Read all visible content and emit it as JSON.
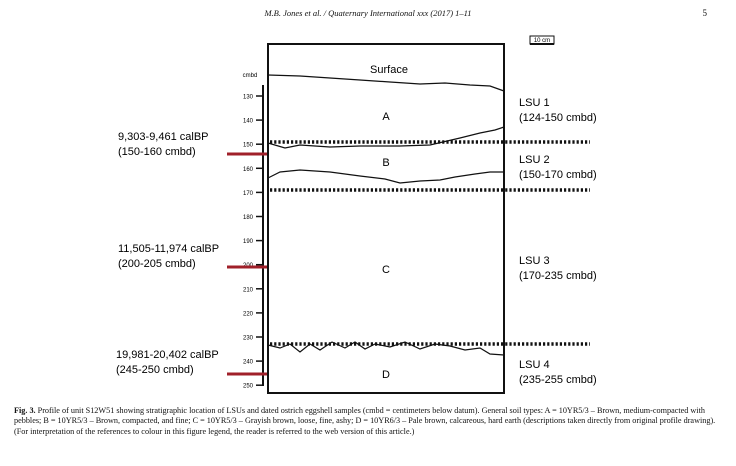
{
  "header": {
    "running_title": "M.B. Jones et al. / Quaternary International xxx (2017) 1–11",
    "page_number": "5"
  },
  "figure": {
    "scale_bar_label": "10 cm",
    "depth_unit_label": "cmbd",
    "depth_ticks": [
      "130",
      "140",
      "150",
      "160",
      "170",
      "180",
      "190",
      "200",
      "210",
      "220",
      "230",
      "240",
      "250"
    ],
    "surface_label": "Surface",
    "soil_layers": [
      "A",
      "B",
      "C",
      "D"
    ],
    "lsus": [
      {
        "name": "LSU 1",
        "range": "(124-150 cmbd)"
      },
      {
        "name": "LSU 2",
        "range": "(150-170 cmbd)"
      },
      {
        "name": "LSU 3",
        "range": "(170-235 cmbd)"
      },
      {
        "name": "LSU 4",
        "range": "(235-255 cmbd)"
      }
    ],
    "dates": [
      {
        "age": "9,303-9,461 calBP",
        "depth": "(150-160 cmbd)"
      },
      {
        "age": "11,505-11,974 calBP",
        "depth": "(200-205 cmbd)"
      },
      {
        "age": "19,981-20,402 calBP",
        "depth": "(245-250 cmbd)"
      }
    ],
    "colors": {
      "sample_marker": "#a0202a",
      "lines": "#111111"
    }
  },
  "caption": {
    "label": "Fig. 3.",
    "text": "Profile of unit S12W51 showing stratigraphic location of LSUs and dated ostrich eggshell samples (cmbd = centimeters below datum). General soil types: A = 10YR5/3 – Brown, medium-compacted with pebbles; B = 10YR5/3 – Brown, compacted, and fine; C = 10YR5/3 – Grayish brown, loose, fine, ashy; D = 10YR6/3 – Pale brown, calcareous, hard earth (descriptions taken directly from original profile drawing). (For interpretation of the references to colour in this figure legend, the reader is referred to the web version of this article.)"
  }
}
